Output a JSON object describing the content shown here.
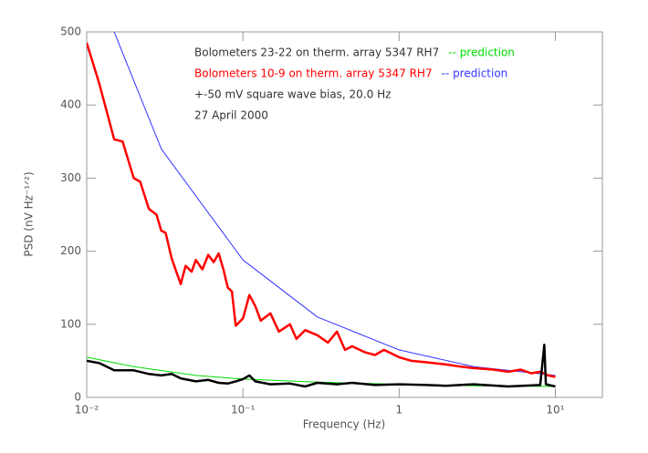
{
  "chart_data": {
    "type": "line",
    "xlabel": "Frequency (Hz)",
    "ylabel": "PSD (nV Hz⁻¹ᐟ²)",
    "xlog": true,
    "xlim": [
      0.01,
      20
    ],
    "ylim": [
      0,
      500
    ],
    "xticks": [
      {
        "value": 0.01,
        "label": "10⁻²"
      },
      {
        "value": 0.1,
        "label": "10⁻¹"
      },
      1,
      {
        "value": 10,
        "label": "10¹"
      }
    ],
    "yticks": [
      0,
      100,
      200,
      300,
      400,
      500
    ],
    "legend": "top-right",
    "annotations": [
      "+-50 mV square wave bias, 20.0 Hz",
      "27 April 2000"
    ],
    "series": [
      {
        "name": "Bolometers 23-22 on therm. array 5347 RH7",
        "color": "#000000",
        "width": 2.5,
        "x": [
          0.01,
          0.012,
          0.015,
          0.02,
          0.025,
          0.03,
          0.035,
          0.04,
          0.05,
          0.06,
          0.07,
          0.08,
          0.09,
          0.1,
          0.11,
          0.12,
          0.15,
          0.2,
          0.25,
          0.3,
          0.4,
          0.5,
          0.7,
          1,
          1.5,
          2,
          3,
          5,
          8,
          8.5,
          8.7,
          10
        ],
        "values": [
          50,
          47,
          37,
          37,
          32,
          30,
          32,
          26,
          22,
          24,
          20,
          19,
          22,
          25,
          30,
          22,
          18,
          19,
          15,
          20,
          18,
          20,
          17,
          18,
          17,
          16,
          18,
          15,
          17,
          72,
          18,
          15
        ]
      },
      {
        "name": "-- prediction",
        "color": "#00dd00",
        "width": 1,
        "x": [
          0.01,
          0.02,
          0.05,
          0.1,
          0.3,
          1,
          3,
          10
        ],
        "values": [
          55,
          42,
          30,
          25,
          21,
          18,
          16,
          15
        ]
      },
      {
        "name": "Bolometers 10-9 on therm. array 5347 RH7",
        "color": "#ff0000",
        "width": 2.5,
        "x": [
          0.01,
          0.012,
          0.015,
          0.017,
          0.02,
          0.022,
          0.025,
          0.028,
          0.03,
          0.032,
          0.035,
          0.04,
          0.043,
          0.047,
          0.05,
          0.055,
          0.06,
          0.065,
          0.07,
          0.075,
          0.08,
          0.085,
          0.09,
          0.1,
          0.11,
          0.12,
          0.13,
          0.15,
          0.17,
          0.2,
          0.22,
          0.25,
          0.3,
          0.35,
          0.4,
          0.45,
          0.5,
          0.6,
          0.7,
          0.8,
          1,
          1.2,
          1.5,
          2,
          2.5,
          3,
          4,
          5,
          6,
          7,
          8,
          9,
          10
        ],
        "values": [
          485,
          430,
          353,
          350,
          300,
          295,
          258,
          250,
          228,
          225,
          190,
          155,
          180,
          172,
          188,
          175,
          195,
          185,
          197,
          175,
          150,
          145,
          98,
          108,
          140,
          125,
          105,
          115,
          90,
          100,
          80,
          92,
          85,
          75,
          90,
          65,
          70,
          62,
          58,
          65,
          55,
          50,
          48,
          45,
          42,
          40,
          38,
          35,
          38,
          33,
          35,
          30,
          28
        ]
      },
      {
        "name": "-- prediction",
        "color": "#3333ff",
        "width": 1,
        "x": [
          0.015,
          0.03,
          0.1,
          0.3,
          1,
          3,
          10
        ],
        "values": [
          500,
          340,
          188,
          110,
          65,
          42,
          30
        ]
      }
    ]
  }
}
